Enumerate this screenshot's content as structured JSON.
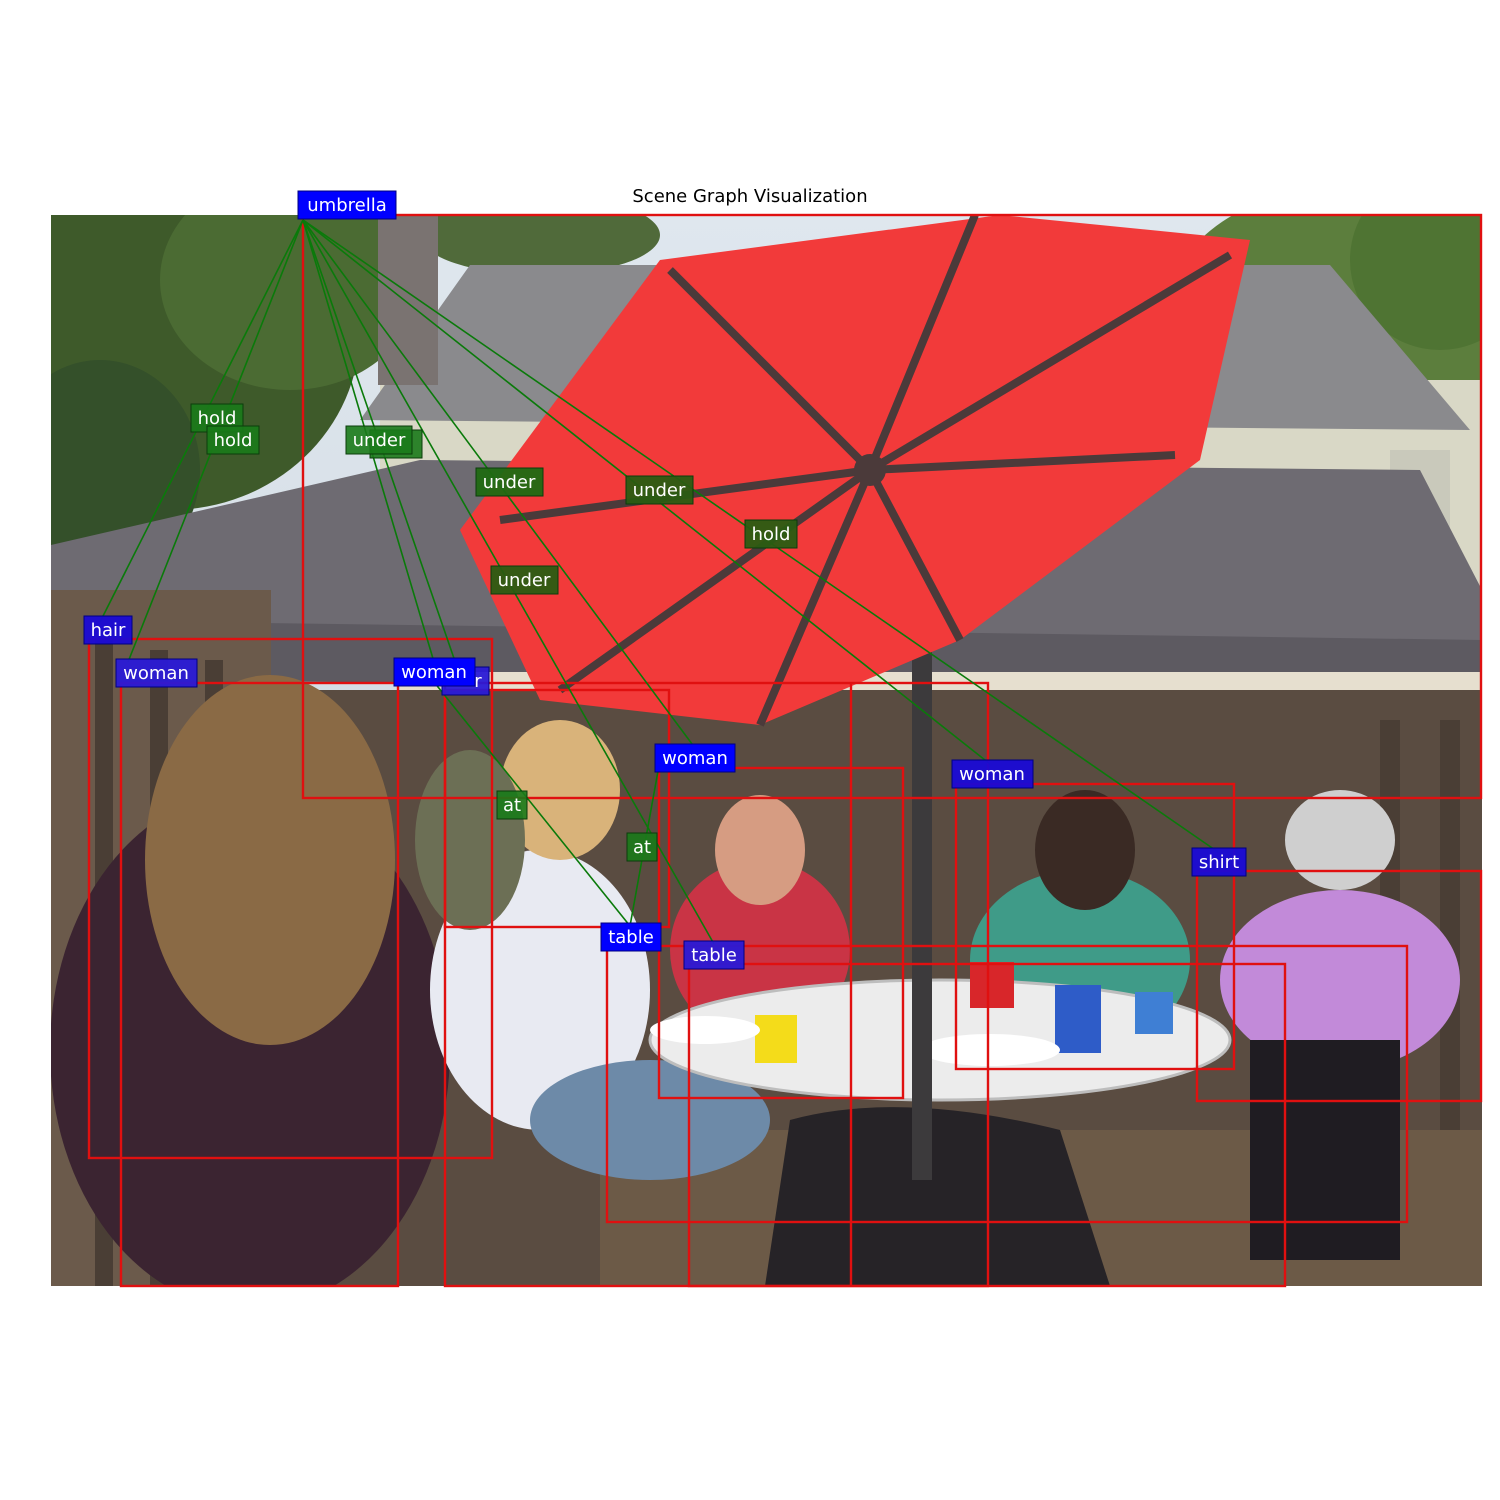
{
  "figure": {
    "title": "Scene Graph Visualization"
  },
  "colors": {
    "object_label_bg": "#0000ff",
    "relation_label_bg": "#1a7a1a",
    "bbox_stroke": "#e01010",
    "edge_stroke": "#0a7a0a",
    "umbrella": "#f23a3a",
    "label_text": "#ffffff"
  },
  "photo": {
    "description_icon": "photo-backyard-party-icon"
  },
  "objects": [
    {
      "id": "o0",
      "label": "umbrella"
    },
    {
      "id": "o1",
      "label": "hair"
    },
    {
      "id": "o2",
      "label": "woman"
    },
    {
      "id": "o3",
      "label": "woman"
    },
    {
      "id": "o4",
      "label": "hair"
    },
    {
      "id": "o5",
      "label": "woman"
    },
    {
      "id": "o6",
      "label": "woman"
    },
    {
      "id": "o7",
      "label": "shirt"
    },
    {
      "id": "o8",
      "label": "table"
    },
    {
      "id": "o9",
      "label": "table"
    }
  ],
  "relations": [
    {
      "label": "hold",
      "subject": "o1",
      "object": "o0"
    },
    {
      "label": "hold",
      "subject": "o2",
      "object": "o0"
    },
    {
      "label": "under",
      "subject": "o3",
      "object": "o0"
    },
    {
      "label": "under",
      "subject": "o4",
      "object": "o0"
    },
    {
      "label": "under",
      "subject": "o5",
      "object": "o0"
    },
    {
      "label": "under",
      "subject": "o6",
      "object": "o0"
    },
    {
      "label": "hold",
      "subject": "o7",
      "object": "o0"
    },
    {
      "label": "under",
      "subject": "o8",
      "object": "o0"
    },
    {
      "label": "at",
      "subject": "o3",
      "object": "o8"
    },
    {
      "label": "at",
      "subject": "o5",
      "object": "o8"
    }
  ]
}
